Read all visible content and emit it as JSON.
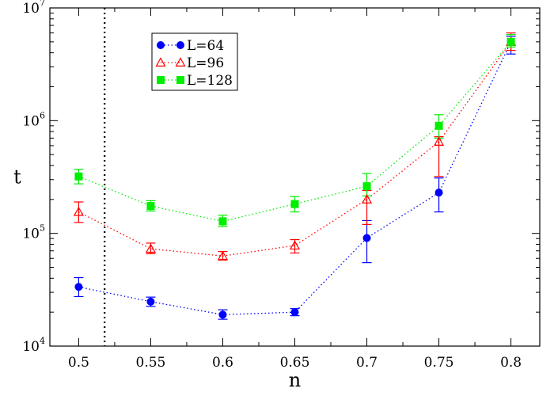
{
  "chart_data": {
    "type": "scatter",
    "title": "",
    "xlabel": "n",
    "ylabel": "t",
    "xlim": [
      0.48,
      0.82
    ],
    "ylim": [
      10000,
      10000000
    ],
    "yscale": "log",
    "legend_position": "top-left",
    "x_ticks": [
      0.5,
      0.55,
      0.6,
      0.65,
      0.7,
      0.75,
      0.8
    ],
    "x_tick_labels": [
      "0.5",
      "0.55",
      "0.6",
      "0.65",
      "0.7",
      "0.75",
      "0.8"
    ],
    "y_ticks": [
      {
        "value": 10000,
        "base": "10",
        "exp": "4"
      },
      {
        "value": 100000,
        "base": "10",
        "exp": "5"
      },
      {
        "value": 1000000,
        "base": "10",
        "exp": "6"
      },
      {
        "value": 10000000,
        "base": "10",
        "exp": "7"
      }
    ],
    "reference_line": {
      "x": 0.518,
      "style": "dotted",
      "color": "#000000"
    },
    "series": [
      {
        "name": "L=64",
        "color": "#0000ff",
        "marker": "circle",
        "x": [
          0.5,
          0.55,
          0.6,
          0.65,
          0.7,
          0.75,
          0.8
        ],
        "y": [
          33500,
          24800,
          19000,
          20000,
          91000,
          230000,
          5000000
        ],
        "err_low": [
          27500,
          22500,
          17300,
          18600,
          55000,
          155000,
          3900000
        ],
        "err_high": [
          40500,
          27200,
          21000,
          21500,
          130000,
          310000,
          5600000
        ]
      },
      {
        "name": "L=96",
        "color": "#ff0000",
        "marker": "triangle",
        "x": [
          0.5,
          0.55,
          0.6,
          0.65,
          0.7,
          0.75,
          0.8
        ],
        "y": [
          155000,
          73000,
          63000,
          78000,
          200000,
          650000,
          5000000
        ],
        "err_low": [
          125000,
          66000,
          58000,
          67000,
          120000,
          320000,
          4200000
        ],
        "err_high": [
          190000,
          82000,
          69000,
          88000,
          240000,
          720000,
          6000000
        ]
      },
      {
        "name": "L=128",
        "color": "#00ee00",
        "marker": "square",
        "x": [
          0.5,
          0.55,
          0.6,
          0.65,
          0.7,
          0.75,
          0.8
        ],
        "y": [
          320000,
          175000,
          128000,
          182000,
          262000,
          900000,
          5000000
        ],
        "err_low": [
          275000,
          158000,
          115000,
          155000,
          215000,
          700000,
          4500000
        ],
        "err_high": [
          370000,
          195000,
          145000,
          212000,
          340000,
          1130000,
          5800000
        ]
      }
    ]
  }
}
